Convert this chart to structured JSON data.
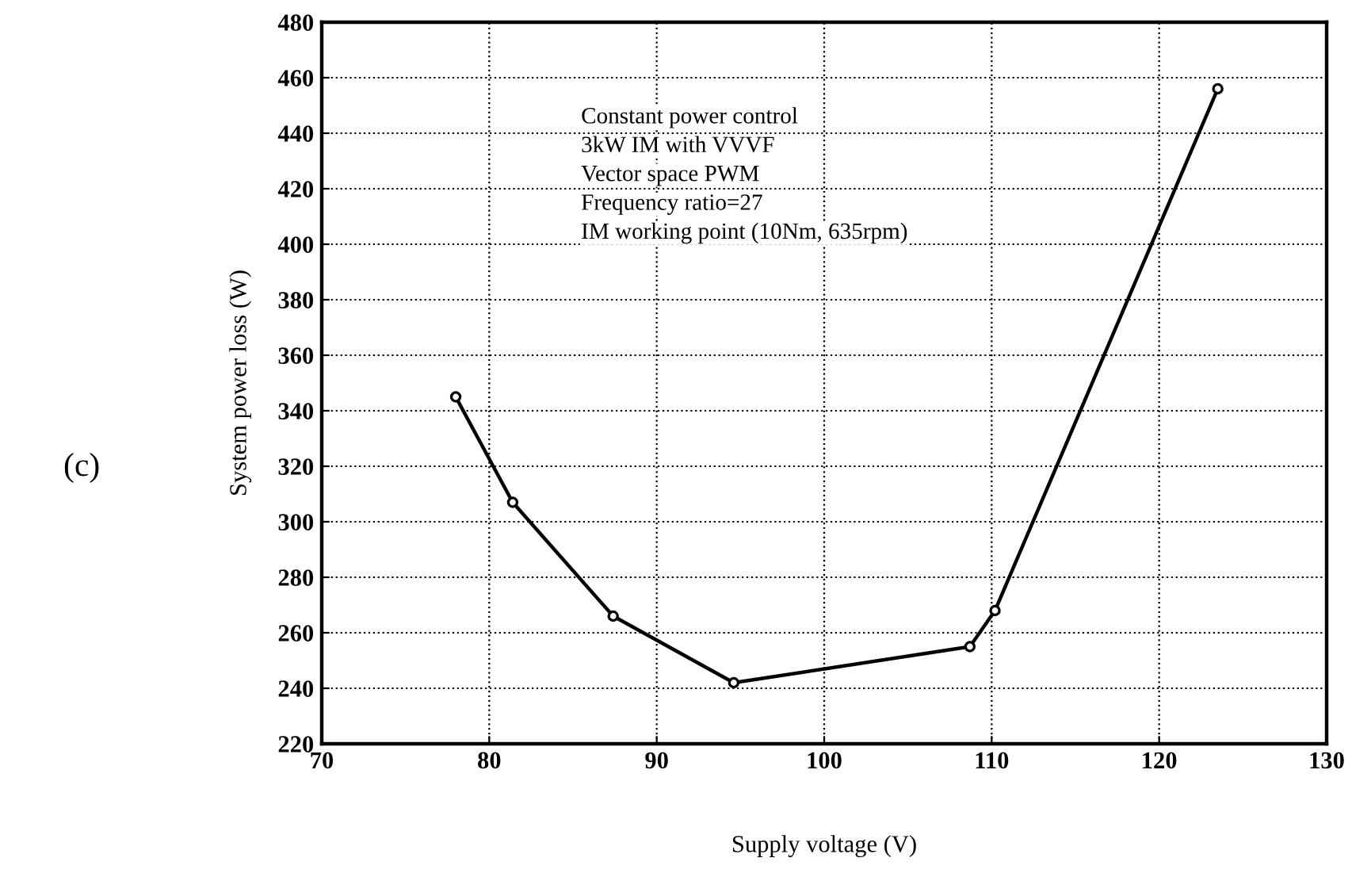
{
  "chart_data": {
    "type": "line",
    "title": "(c)",
    "xlabel": "Supply voltage (V)",
    "ylabel": "System power loss (W)",
    "x": [
      78.0,
      81.4,
      87.4,
      94.6,
      108.7,
      110.2,
      123.5
    ],
    "series": [
      {
        "color": "#000000",
        "values": [
          345,
          307,
          266,
          242,
          255,
          268,
          456
        ]
      }
    ],
    "xlim": [
      70,
      130
    ],
    "xticks": [
      70,
      80,
      90,
      100,
      110,
      120,
      130
    ],
    "ylim": [
      220,
      480
    ],
    "yticks": [
      220,
      240,
      260,
      280,
      300,
      320,
      340,
      360,
      380,
      400,
      420,
      440,
      460,
      480
    ],
    "grid": true,
    "marker": "circle",
    "line_style": "solid",
    "annotations": [
      "Constant power control",
      "3kW IM with VVVF",
      "Vector space PWM",
      "Frequency ratio=27",
      "IM working point (10Nm, 635rpm)"
    ]
  }
}
